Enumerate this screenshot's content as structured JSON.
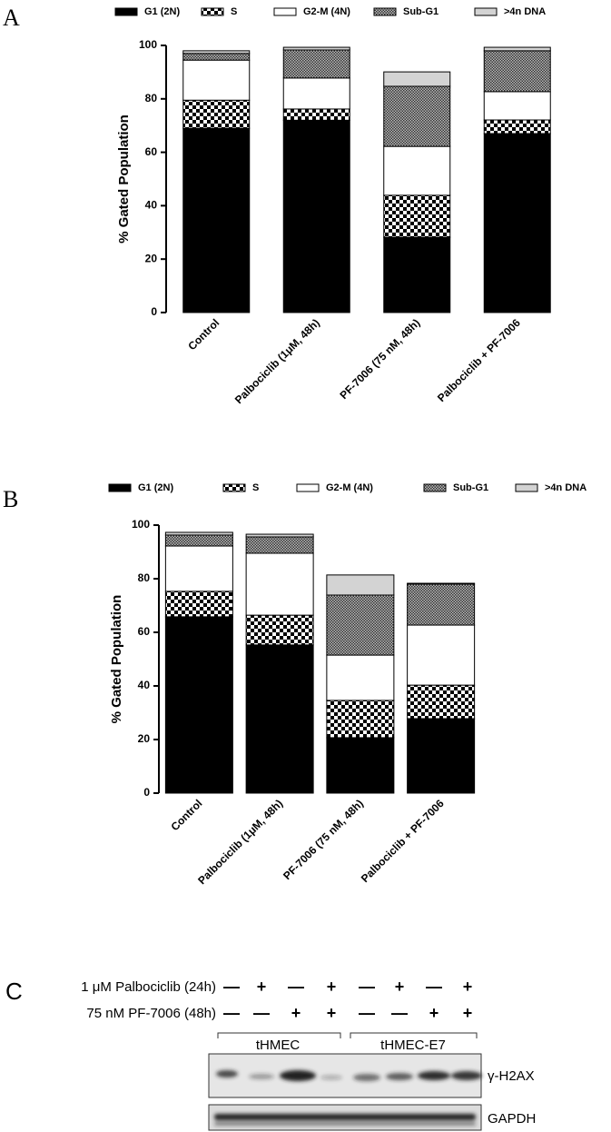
{
  "chart_data": [
    {
      "type": "stacked-bar",
      "ylabel": "% Gated Population",
      "categories": [
        "Control",
        "Palbociclib (1μM, 48h)",
        "PF-7006 (75 nM, 48h)",
        "Palbociclib + PF-7006"
      ],
      "series": [
        {
          "name": "G1 (2N)",
          "color": "#000000",
          "fill": "solid",
          "values": [
            69,
            72,
            28.2,
            67
          ]
        },
        {
          "name": "S",
          "color": "#000000",
          "fill": "checker",
          "values": [
            10.5,
            4.2,
            15.7,
            5.1
          ]
        },
        {
          "name": "G2-M (4N)",
          "color": "#ffffff",
          "fill": "solid",
          "values": [
            15,
            11.6,
            18.3,
            10.6
          ]
        },
        {
          "name": "Sub-G1",
          "color": "#555555",
          "fill": "crosshatch",
          "values": [
            2.5,
            10.5,
            22.5,
            15.3
          ]
        },
        {
          "name": ">4n DNA",
          "color": "#d3d3d3",
          "fill": "solid",
          "values": [
            1,
            1,
            5.4,
            1.3
          ]
        }
      ],
      "ylim": [
        0,
        100
      ],
      "yticks": [
        0,
        20,
        40,
        60,
        80,
        100
      ]
    },
    {
      "type": "stacked-bar",
      "ylabel": "% Gated Population",
      "categories": [
        "Control",
        "Palbociclib (1μM, 48h)",
        "PF-7006 (75 nM, 48h)",
        "Palbociclib + PF-7006"
      ],
      "series": [
        {
          "name": "G1 (2N)",
          "color": "#000000",
          "fill": "solid",
          "values": [
            65.8,
            55.3,
            20.7,
            27.8
          ]
        },
        {
          "name": "S",
          "color": "#000000",
          "fill": "checker",
          "values": [
            9.5,
            11.1,
            13.9,
            12.5
          ]
        },
        {
          "name": "G2-M (4N)",
          "color": "#ffffff",
          "fill": "solid",
          "values": [
            16.9,
            23.1,
            16.9,
            22.4
          ]
        },
        {
          "name": "Sub-G1",
          "color": "#555555",
          "fill": "crosshatch",
          "values": [
            4.1,
            6.1,
            22.4,
            15.3
          ]
        },
        {
          "name": ">4n DNA",
          "color": "#d3d3d3",
          "fill": "solid",
          "values": [
            1,
            1,
            7.5,
            0.3
          ]
        }
      ],
      "ylim": [
        0,
        100
      ],
      "yticks": [
        0,
        20,
        40,
        60,
        80,
        100
      ]
    }
  ],
  "panel_labels": [
    "A",
    "B",
    "C"
  ],
  "blot": {
    "treatments": [
      {
        "label": "1 μM Palbociclib (24h)",
        "lanes": [
          "—",
          "+",
          "—",
          "+",
          "—",
          "+",
          "—",
          "+"
        ]
      },
      {
        "label": "75 nM PF-7006 (48h)",
        "lanes": [
          "—",
          "—",
          "+",
          "+",
          "—",
          "—",
          "+",
          "+"
        ]
      }
    ],
    "groups": [
      "tHMEC",
      "tHMEC-E7"
    ],
    "bands": [
      "γ-H2AX",
      "GAPDH"
    ]
  }
}
